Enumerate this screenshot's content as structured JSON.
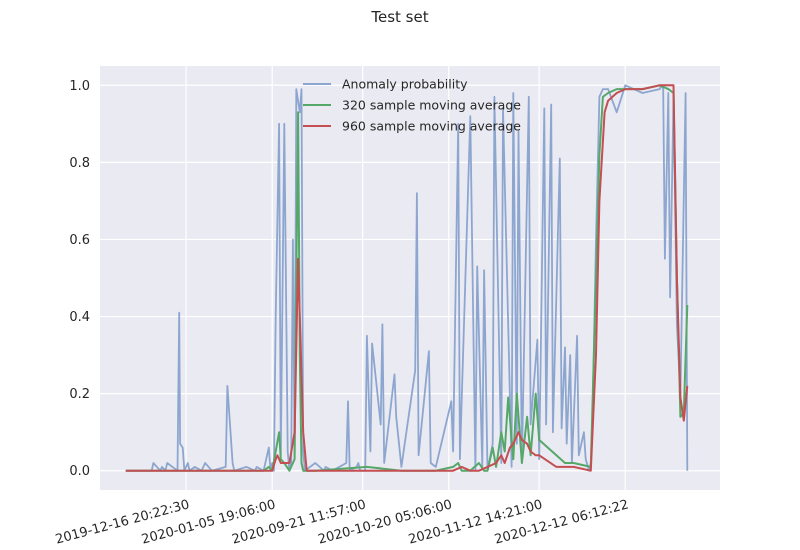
{
  "chart_data": {
    "type": "line",
    "title": "Test set",
    "xlabel": "",
    "ylabel": "",
    "ylim": [
      -0.05,
      1.05
    ],
    "yticks": [
      0.0,
      0.2,
      0.4,
      0.6,
      0.8,
      1.0
    ],
    "ytick_labels": [
      "0.0",
      "0.2",
      "0.4",
      "0.6",
      "0.8",
      "1.0"
    ],
    "xlim": [
      -1500,
      34500
    ],
    "xticks": [
      3500,
      8500,
      13750,
      18750,
      24000,
      29000
    ],
    "xtick_labels": [
      "2019-12-16 20:22:30",
      "2020-01-05 19:06:00",
      "2020-09-21 11:57:00",
      "2020-10-20 05:06:00",
      "2020-11-12 14:21:00",
      "2020-12-12 06:12:22"
    ],
    "grid": true,
    "legend_position": "upper-center",
    "background": "#eaeaf2",
    "series": [
      {
        "name": "Anomaly probability",
        "color": "#8da6cf",
        "x": [
          0,
          1500,
          1600,
          2000,
          2100,
          2300,
          2400,
          3000,
          3100,
          3150,
          3300,
          3400,
          3600,
          3700,
          4000,
          4400,
          4600,
          5000,
          5800,
          5900,
          6200,
          6300,
          7000,
          7500,
          7600,
          8000,
          8300,
          8400,
          8500,
          8600,
          8700,
          8900,
          9000,
          9200,
          9400,
          9500,
          9600,
          9700,
          9800,
          9900,
          10100,
          10200,
          10300,
          10400,
          11000,
          11500,
          11600,
          12000,
          12800,
          12900,
          13000,
          13400,
          13500,
          13600,
          13900,
          14000,
          14200,
          14300,
          14800,
          14900,
          15000,
          15600,
          15700,
          16000,
          16800,
          16900,
          17000,
          17600,
          17700,
          18000,
          18900,
          19000,
          19300,
          19400,
          20000,
          20300,
          20400,
          20700,
          20800,
          21000,
          21300,
          21400,
          21800,
          21900,
          22400,
          22500,
          22700,
          22800,
          23000,
          23400,
          23500,
          23900,
          24000,
          24300,
          24400,
          24700,
          24800,
          25200,
          25300,
          25500,
          25600,
          25800,
          25900,
          26200,
          26300,
          26600,
          26700,
          26900,
          27000,
          27100,
          27300,
          27500,
          27700,
          28000,
          28500,
          29000,
          30000,
          31000,
          31100,
          31200,
          31300,
          31500,
          31600,
          31800,
          32000,
          32200,
          32500,
          32600
        ],
        "values": [
          0.0,
          0.0,
          0.02,
          0.0,
          0.01,
          0.0,
          0.02,
          0.0,
          0.41,
          0.07,
          0.06,
          0.0,
          0.02,
          0.0,
          0.01,
          0.0,
          0.02,
          0.0,
          0.01,
          0.22,
          0.02,
          0.0,
          0.01,
          0.0,
          0.01,
          0.0,
          0.06,
          0.0,
          0.02,
          0.0,
          0.4,
          0.9,
          0.04,
          0.9,
          0.05,
          0.0,
          0.02,
          0.6,
          0.04,
          0.99,
          0.93,
          0.99,
          0.05,
          0.0,
          0.02,
          0.0,
          0.01,
          0.0,
          0.02,
          0.18,
          0.0,
          0.01,
          0.02,
          0.0,
          0.0,
          0.35,
          0.05,
          0.33,
          0.12,
          0.38,
          0.02,
          0.25,
          0.14,
          0.01,
          0.26,
          0.72,
          0.04,
          0.31,
          0.02,
          0.01,
          0.18,
          0.05,
          0.9,
          0.03,
          0.92,
          0.0,
          0.53,
          0.01,
          0.52,
          0.0,
          0.07,
          0.97,
          0.02,
          0.94,
          0.01,
          0.98,
          0.07,
          0.88,
          0.02,
          0.97,
          0.12,
          0.34,
          0.03,
          0.94,
          0.12,
          0.95,
          0.1,
          0.81,
          0.11,
          0.32,
          0.07,
          0.3,
          0.02,
          0.35,
          0.04,
          0.1,
          0.03,
          0.0,
          0.02,
          0.15,
          0.6,
          0.97,
          0.99,
          0.99,
          0.93,
          1.0,
          0.98,
          0.99,
          1.0,
          0.99,
          0.55,
          0.98,
          0.45,
          0.97,
          0.38,
          0.2,
          0.98,
          0.0
        ]
      },
      {
        "name": "320 sample moving average",
        "color": "#55a868",
        "x": [
          0,
          7000,
          8000,
          8300,
          8500,
          8700,
          8900,
          9000,
          9200,
          9500,
          9800,
          9900,
          10000,
          10100,
          10200,
          10300,
          10500,
          11000,
          14000,
          16000,
          18000,
          19000,
          19300,
          19500,
          20000,
          20500,
          20800,
          21000,
          21300,
          21500,
          21800,
          22000,
          22200,
          22500,
          22700,
          23000,
          23300,
          23500,
          23800,
          24000,
          24500,
          25000,
          25500,
          26000,
          27000,
          27300,
          27500,
          27700,
          28000,
          28500,
          29000,
          30000,
          31000,
          31500,
          31800,
          32000,
          32200,
          32400,
          32600
        ],
        "values": [
          0.0,
          0.0,
          0.0,
          0.01,
          0.0,
          0.05,
          0.1,
          0.03,
          0.02,
          0.0,
          0.03,
          0.5,
          0.93,
          0.3,
          0.02,
          0.0,
          0.0,
          0.0,
          0.01,
          0.0,
          0.0,
          0.01,
          0.02,
          0.0,
          0.0,
          0.02,
          0.0,
          0.0,
          0.06,
          0.01,
          0.1,
          0.05,
          0.19,
          0.03,
          0.2,
          0.02,
          0.14,
          0.04,
          0.2,
          0.08,
          0.06,
          0.04,
          0.02,
          0.02,
          0.01,
          0.5,
          0.82,
          0.97,
          0.98,
          0.99,
          0.99,
          0.99,
          1.0,
          0.99,
          0.98,
          0.5,
          0.14,
          0.15,
          0.43
        ]
      },
      {
        "name": "960 sample moving average",
        "color": "#c44e52",
        "x": [
          0,
          7000,
          8000,
          8500,
          8700,
          8800,
          9000,
          9500,
          9800,
          10000,
          10100,
          10300,
          10500,
          12000,
          15000,
          18000,
          19000,
          19500,
          20000,
          20500,
          21000,
          21500,
          21800,
          22000,
          22300,
          22500,
          22800,
          23000,
          23300,
          23500,
          23800,
          24000,
          25000,
          26000,
          27000,
          27300,
          27500,
          27800,
          28000,
          28500,
          29000,
          30000,
          31000,
          31500,
          31800,
          32000,
          32200,
          32400,
          32600
        ],
        "values": [
          0.0,
          0.0,
          0.0,
          0.0,
          0.03,
          0.04,
          0.02,
          0.02,
          0.1,
          0.55,
          0.4,
          0.1,
          0.0,
          0.0,
          0.0,
          0.0,
          0.0,
          0.01,
          0.0,
          0.0,
          0.01,
          0.02,
          0.04,
          0.02,
          0.06,
          0.07,
          0.1,
          0.08,
          0.07,
          0.05,
          0.04,
          0.04,
          0.01,
          0.01,
          0.0,
          0.3,
          0.7,
          0.93,
          0.96,
          0.98,
          0.99,
          0.99,
          1.0,
          1.0,
          1.0,
          0.5,
          0.19,
          0.13,
          0.22
        ]
      }
    ]
  }
}
